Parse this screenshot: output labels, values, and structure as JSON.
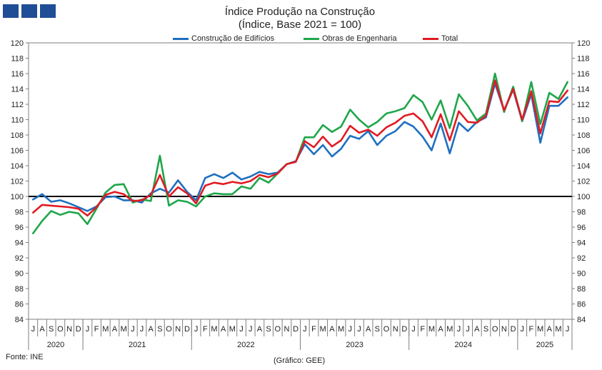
{
  "header": {
    "title": "Índice Produção na Construção",
    "subtitle": "(Índice, Base 2021 = 100)"
  },
  "logo": {
    "color": "#1f4e96"
  },
  "footer": {
    "source": "Fonte: INE",
    "credit": "(Gráfico: GEE)"
  },
  "chart_data": {
    "type": "line",
    "title": "Índice Produção na Construção",
    "subtitle": "(Índice, Base 2021 = 100)",
    "ylim": [
      84,
      120
    ],
    "yticks": [
      84,
      86,
      88,
      90,
      92,
      94,
      96,
      98,
      100,
      102,
      104,
      106,
      108,
      110,
      112,
      114,
      116,
      118,
      120
    ],
    "reference_line": 100,
    "grid": false,
    "legend_position": "top-center",
    "month_labels": [
      "J",
      "A",
      "S",
      "O",
      "N",
      "D",
      "J",
      "F",
      "M",
      "A",
      "M",
      "J",
      "J",
      "A",
      "S",
      "O",
      "N",
      "D",
      "J",
      "F",
      "M",
      "A",
      "M",
      "J",
      "J",
      "A",
      "S",
      "O",
      "N",
      "D",
      "J",
      "F",
      "M",
      "A",
      "M",
      "J",
      "J",
      "A",
      "S",
      "O",
      "N",
      "D",
      "J",
      "F",
      "M",
      "A",
      "M",
      "J",
      "J",
      "A",
      "S",
      "O",
      "N",
      "D",
      "J",
      "F",
      "M",
      "A",
      "M",
      "J"
    ],
    "years": [
      {
        "label": "2020",
        "start": 0,
        "count": 6
      },
      {
        "label": "2021",
        "start": 6,
        "count": 12
      },
      {
        "label": "2022",
        "start": 18,
        "count": 12
      },
      {
        "label": "2023",
        "start": 30,
        "count": 12
      },
      {
        "label": "2024",
        "start": 42,
        "count": 12
      },
      {
        "label": "2025",
        "start": 54,
        "count": 6
      }
    ],
    "series": [
      {
        "name": "Construção de Edifícios",
        "color": "#1f6fbf",
        "values": [
          99.6,
          100.3,
          99.3,
          99.5,
          99.1,
          98.6,
          98.1,
          98.7,
          99.9,
          100.0,
          99.5,
          99.5,
          99.2,
          100.4,
          101.0,
          100.5,
          102.1,
          100.6,
          99.5,
          102.4,
          102.9,
          102.4,
          103.1,
          102.2,
          102.6,
          103.2,
          102.9,
          103.1,
          104.2,
          104.6,
          106.8,
          105.5,
          106.7,
          105.2,
          106.2,
          107.9,
          107.5,
          108.5,
          106.7,
          107.9,
          108.5,
          109.7,
          109.1,
          107.8,
          106.0,
          109.5,
          105.6,
          109.6,
          108.5,
          109.7,
          110.3,
          114.7,
          111.2,
          113.9,
          109.8,
          113.3,
          107.0,
          111.8,
          111.8,
          112.9
        ]
      },
      {
        "name": "Obras de Engenharia",
        "color": "#1fa64a",
        "values": [
          95.2,
          96.8,
          98.1,
          97.6,
          98.0,
          97.8,
          96.4,
          98.4,
          100.5,
          101.5,
          101.6,
          99.2,
          99.6,
          99.4,
          105.3,
          98.8,
          99.5,
          99.3,
          98.7,
          100.0,
          100.4,
          100.3,
          100.3,
          101.3,
          101.0,
          102.4,
          101.8,
          103.0,
          104.2,
          104.5,
          107.7,
          107.7,
          109.3,
          108.4,
          109.1,
          111.3,
          110.0,
          109.0,
          109.7,
          110.8,
          111.1,
          111.5,
          113.2,
          112.3,
          110.0,
          112.5,
          108.9,
          113.3,
          111.8,
          109.9,
          110.8,
          116.0,
          111.0,
          114.3,
          109.8,
          114.9,
          109.4,
          113.5,
          112.7,
          114.9
        ]
      },
      {
        "name": "Total",
        "color": "#e01b24",
        "values": [
          97.9,
          98.9,
          98.8,
          98.7,
          98.6,
          98.4,
          97.5,
          98.6,
          100.2,
          100.6,
          100.3,
          99.4,
          99.5,
          100.2,
          102.8,
          100.0,
          101.2,
          100.4,
          99.1,
          101.4,
          101.8,
          101.6,
          101.9,
          101.7,
          102.0,
          102.8,
          102.5,
          103.0,
          104.2,
          104.5,
          107.2,
          106.4,
          107.8,
          106.5,
          107.3,
          109.2,
          108.3,
          108.7,
          107.9,
          109.0,
          109.6,
          110.5,
          110.8,
          109.8,
          107.7,
          110.7,
          107.3,
          111.1,
          109.7,
          109.6,
          110.5,
          115.1,
          111.2,
          114.0,
          110.0,
          113.7,
          108.2,
          112.4,
          112.3,
          113.8
        ]
      }
    ]
  }
}
